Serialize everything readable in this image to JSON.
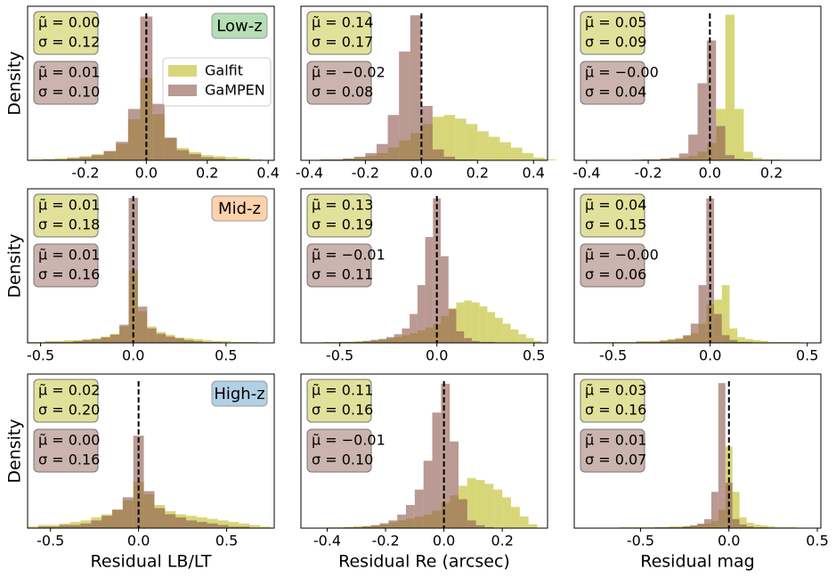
{
  "chart_data": [
    {
      "type": "histogram",
      "ylabel": "Density",
      "tag": {
        "text": "Low-z",
        "color": "#2ca02c"
      },
      "legend": "right",
      "vline": 0,
      "xlim": [
        -0.39,
        0.42
      ],
      "ylim": [
        0,
        150
      ],
      "xticks": [
        -0.2,
        {
          "value": 0,
          "label": "0.0"
        },
        0.2,
        0.4
      ],
      "bins": [
        -0.38,
        -0.34,
        -0.3,
        -0.26,
        -0.22,
        -0.18,
        -0.14,
        -0.1,
        -0.06,
        -0.02,
        0.02,
        0.06,
        0.1,
        0.14,
        0.18,
        0.22,
        0.26,
        0.3,
        0.34,
        0.38
      ],
      "series": [
        {
          "name": "Galfit",
          "color": "#bcbd22",
          "stats": [
            "μ̃ = 0.00",
            "σ = 0.12"
          ],
          "values": [
            1,
            1,
            2,
            3,
            4,
            6,
            9,
            16,
            40,
            80,
            45,
            22,
            12,
            8,
            5,
            4,
            3,
            2,
            1
          ]
        },
        {
          "name": "GaMPEN",
          "color": "#8c564b",
          "stats": [
            "μ̃ = 0.01",
            "σ = 0.10"
          ],
          "values": [
            0,
            1,
            1,
            2,
            3,
            5,
            9,
            18,
            50,
            140,
            55,
            22,
            10,
            6,
            3,
            2,
            1,
            1,
            0
          ]
        }
      ]
    },
    {
      "type": "histogram",
      "vline": 0,
      "xlim": [
        -0.43,
        0.45
      ],
      "ylim": [
        0,
        170
      ],
      "xticks": [
        -0.4,
        -0.2,
        {
          "value": 0,
          "label": "0.0"
        },
        0.2,
        0.4
      ],
      "bins": [
        -0.4,
        -0.36,
        -0.32,
        -0.28,
        -0.24,
        -0.2,
        -0.16,
        -0.12,
        -0.08,
        -0.04,
        0,
        0.04,
        0.08,
        0.12,
        0.16,
        0.2,
        0.24,
        0.28,
        0.32,
        0.36,
        0.4,
        0.44,
        0.48
      ],
      "series": [
        {
          "color": "#bcbd22",
          "stats": [
            "μ̃ = 0.14",
            "σ = 0.17"
          ],
          "values": [
            0,
            1,
            1,
            2,
            3,
            5,
            8,
            14,
            22,
            30,
            40,
            48,
            50,
            46,
            40,
            32,
            26,
            20,
            14,
            8,
            3,
            1
          ]
        },
        {
          "color": "#8c564b",
          "stats": [
            "μ̃ = −0.02",
            "σ = 0.08"
          ],
          "values": [
            0,
            1,
            1,
            2,
            4,
            8,
            18,
            50,
            120,
            160,
            60,
            12,
            4,
            1,
            1,
            0,
            0,
            0,
            0,
            0,
            0,
            0
          ]
        }
      ]
    },
    {
      "type": "histogram",
      "vline": 0,
      "xlim": [
        -0.44,
        0.36
      ],
      "ylim": [
        0,
        180
      ],
      "xticks": [
        -0.4,
        -0.2,
        {
          "value": 0,
          "label": "0.0"
        },
        0.2
      ],
      "bins": [
        -0.4,
        -0.37,
        -0.34,
        -0.31,
        -0.28,
        -0.25,
        -0.22,
        -0.19,
        -0.16,
        -0.13,
        -0.1,
        -0.07,
        -0.04,
        -0.01,
        0.02,
        0.05,
        0.08,
        0.11,
        0.14,
        0.17,
        0.2,
        0.23,
        0.26,
        0.29,
        0.32
      ],
      "series": [
        {
          "color": "#bcbd22",
          "stats": [
            "μ̃ = 0.05",
            "σ = 0.09"
          ],
          "values": [
            0,
            0,
            0,
            0,
            0,
            1,
            1,
            1,
            2,
            2,
            3,
            5,
            10,
            20,
            60,
            170,
            60,
            10,
            3,
            1,
            1,
            0,
            0,
            0
          ]
        },
        {
          "color": "#8c564b",
          "stats": [
            "μ̃ = −0.00",
            "σ = 0.04"
          ],
          "values": [
            0,
            0,
            0,
            0,
            0,
            0,
            1,
            1,
            2,
            3,
            8,
            30,
            90,
            140,
            40,
            6,
            2,
            1,
            0,
            0,
            0,
            0,
            0,
            0
          ]
        }
      ]
    },
    {
      "type": "histogram",
      "ylabel": "Density",
      "tag": {
        "text": "Mid-z",
        "color": "#ff7f0e"
      },
      "vline": 0,
      "xlim": [
        -0.57,
        0.76
      ],
      "ylim": [
        0,
        170
      ],
      "xticks": [
        -0.5,
        {
          "value": 0,
          "label": "0.0"
        },
        0.5
      ],
      "bins": [
        -0.575,
        -0.525,
        -0.475,
        -0.425,
        -0.375,
        -0.325,
        -0.275,
        -0.225,
        -0.175,
        -0.125,
        -0.075,
        -0.025,
        0.025,
        0.075,
        0.125,
        0.175,
        0.225,
        0.275,
        0.325,
        0.375,
        0.425,
        0.475,
        0.525,
        0.575,
        0.625,
        0.675
      ],
      "series": [
        {
          "color": "#bcbd22",
          "stats": [
            "μ̃ = 0.01",
            "σ = 0.18"
          ],
          "values": [
            1,
            1,
            2,
            2,
            3,
            3,
            4,
            5,
            7,
            10,
            18,
            80,
            35,
            18,
            12,
            9,
            6,
            5,
            4,
            3,
            2,
            2,
            1,
            1,
            1
          ]
        },
        {
          "color": "#8c564b",
          "stats": [
            "μ̃ = 0.01",
            "σ = 0.16"
          ],
          "values": [
            0,
            0,
            1,
            1,
            1,
            2,
            3,
            4,
            6,
            9,
            20,
            160,
            40,
            16,
            10,
            7,
            5,
            3,
            2,
            1,
            1,
            0,
            0,
            0,
            0
          ]
        }
      ]
    },
    {
      "type": "histogram",
      "vline": 0,
      "xlim": [
        -0.7,
        0.57
      ],
      "ylim": [
        0,
        160
      ],
      "xticks": [
        -0.5,
        {
          "value": 0,
          "label": "0.0"
        },
        0.5
      ],
      "bins": [
        -0.66,
        -0.62,
        -0.58,
        -0.54,
        -0.5,
        -0.46,
        -0.42,
        -0.38,
        -0.34,
        -0.3,
        -0.26,
        -0.22,
        -0.18,
        -0.14,
        -0.1,
        -0.06,
        -0.02,
        0.02,
        0.06,
        0.1,
        0.14,
        0.18,
        0.22,
        0.26,
        0.3,
        0.34,
        0.38,
        0.42,
        0.46,
        0.5,
        0.54
      ],
      "series": [
        {
          "color": "#bcbd22",
          "stats": [
            "μ̃ = 0.13",
            "σ = 0.19"
          ],
          "values": [
            0,
            0,
            1,
            1,
            1,
            1,
            2,
            2,
            3,
            4,
            5,
            6,
            8,
            10,
            13,
            16,
            20,
            28,
            36,
            42,
            44,
            42,
            38,
            32,
            26,
            20,
            14,
            9,
            5,
            2
          ]
        },
        {
          "color": "#8c564b",
          "stats": [
            "μ̃ = −0.01",
            "σ = 0.11"
          ],
          "values": [
            0,
            0,
            0,
            0,
            1,
            1,
            1,
            2,
            3,
            4,
            6,
            9,
            15,
            30,
            60,
            110,
            150,
            90,
            35,
            12,
            5,
            2,
            1,
            1,
            0,
            0,
            0,
            0,
            0,
            0
          ]
        }
      ]
    },
    {
      "type": "histogram",
      "vline": 0,
      "xlim": [
        -0.7,
        0.57
      ],
      "ylim": [
        0,
        160
      ],
      "xticks": [
        -0.5,
        {
          "value": 0,
          "label": "0.0"
        },
        0.5
      ],
      "bins": [
        -0.66,
        -0.62,
        -0.58,
        -0.54,
        -0.5,
        -0.46,
        -0.42,
        -0.38,
        -0.34,
        -0.3,
        -0.26,
        -0.22,
        -0.18,
        -0.14,
        -0.1,
        -0.06,
        -0.02,
        0.02,
        0.06,
        0.1,
        0.14,
        0.18,
        0.22,
        0.26,
        0.3,
        0.34,
        0.38,
        0.42,
        0.46,
        0.5,
        0.54
      ],
      "series": [
        {
          "color": "#bcbd22",
          "stats": [
            "μ̃ = 0.04",
            "σ = 0.15"
          ],
          "values": [
            0,
            1,
            1,
            1,
            1,
            1,
            1,
            2,
            2,
            2,
            3,
            4,
            5,
            7,
            10,
            20,
            40,
            45,
            60,
            15,
            6,
            4,
            3,
            2,
            1,
            1,
            1,
            1,
            0,
            0
          ]
        },
        {
          "color": "#8c564b",
          "stats": [
            "μ̃ = −0.00",
            "σ = 0.06"
          ],
          "values": [
            0,
            0,
            0,
            0,
            0,
            0,
            0,
            1,
            1,
            1,
            2,
            3,
            4,
            8,
            20,
            60,
            150,
            30,
            8,
            3,
            1,
            1,
            0,
            0,
            0,
            0,
            0,
            0,
            0,
            0
          ]
        }
      ]
    },
    {
      "type": "histogram",
      "ylabel": "Density",
      "xlabel": "Residual LB/LT",
      "tag": {
        "text": "High-z",
        "color": "#1f77b4"
      },
      "vline": 0,
      "xlim": [
        -0.63,
        0.77
      ],
      "ylim": [
        0,
        100
      ],
      "xticks": [
        -0.5,
        {
          "value": 0,
          "label": "0.0"
        },
        0.5
      ],
      "bins": [
        -0.63,
        -0.57,
        -0.51,
        -0.45,
        -0.39,
        -0.33,
        -0.27,
        -0.21,
        -0.15,
        -0.09,
        -0.03,
        0.03,
        0.09,
        0.15,
        0.21,
        0.27,
        0.33,
        0.39,
        0.45,
        0.51,
        0.57,
        0.63,
        0.69,
        0.75
      ],
      "series": [
        {
          "color": "#bcbd22",
          "stats": [
            "μ̃ = 0.02",
            "σ = 0.20"
          ],
          "values": [
            1,
            2,
            2,
            3,
            4,
            5,
            7,
            9,
            12,
            18,
            30,
            22,
            15,
            11,
            9,
            8,
            7,
            6,
            5,
            4,
            3,
            2,
            1
          ]
        },
        {
          "color": "#8c564b",
          "stats": [
            "μ̃ = 0.00",
            "σ = 0.16"
          ],
          "values": [
            0,
            1,
            1,
            2,
            2,
            3,
            5,
            8,
            12,
            20,
            60,
            24,
            13,
            9,
            7,
            5,
            4,
            3,
            2,
            1,
            1,
            0,
            0
          ]
        }
      ]
    },
    {
      "type": "histogram",
      "xlabel": "Residual Re (arcsec)",
      "vline": 0,
      "xlim": [
        -0.49,
        0.355
      ],
      "ylim": [
        0,
        160
      ],
      "xticks": [
        -0.4,
        -0.2,
        {
          "value": 0,
          "label": "0.0"
        },
        0.2
      ],
      "bins": [
        -0.46,
        -0.43,
        -0.4,
        -0.37,
        -0.34,
        -0.31,
        -0.28,
        -0.25,
        -0.22,
        -0.19,
        -0.16,
        -0.13,
        -0.1,
        -0.07,
        -0.04,
        -0.01,
        0.02,
        0.05,
        0.08,
        0.11,
        0.14,
        0.17,
        0.2,
        0.23,
        0.26,
        0.29,
        0.32
      ],
      "series": [
        {
          "color": "#bcbd22",
          "stats": [
            "μ̃ = 0.11",
            "σ = 0.16"
          ],
          "values": [
            0,
            0,
            1,
            1,
            1,
            2,
            2,
            3,
            4,
            6,
            8,
            10,
            12,
            14,
            18,
            26,
            34,
            44,
            52,
            50,
            46,
            40,
            32,
            22,
            12,
            4
          ]
        },
        {
          "color": "#8c564b",
          "stats": [
            "μ̃ = −0.01",
            "σ = 0.10"
          ],
          "values": [
            0,
            0,
            0,
            0,
            1,
            1,
            2,
            3,
            5,
            8,
            14,
            24,
            40,
            70,
            120,
            150,
            90,
            30,
            8,
            3,
            1,
            0,
            0,
            0,
            0,
            0
          ]
        }
      ]
    },
    {
      "type": "histogram",
      "xlabel": "Residual mag",
      "vline": 0,
      "xlim": [
        -0.875,
        0.52
      ],
      "ylim": [
        0,
        170
      ],
      "xticks": [
        -0.5,
        {
          "value": 0,
          "label": "0.0"
        },
        0.5
      ],
      "bins": [
        -0.82,
        -0.78,
        -0.74,
        -0.7,
        -0.66,
        -0.62,
        -0.58,
        -0.54,
        -0.5,
        -0.46,
        -0.42,
        -0.38,
        -0.34,
        -0.3,
        -0.26,
        -0.22,
        -0.18,
        -0.14,
        -0.1,
        -0.06,
        -0.02,
        0.02,
        0.06,
        0.1,
        0.14,
        0.18,
        0.22,
        0.26,
        0.3,
        0.34,
        0.38,
        0.42,
        0.46,
        0.5
      ],
      "series": [
        {
          "color": "#bcbd22",
          "stats": [
            "μ̃ = 0.03",
            "σ = 0.16"
          ],
          "values": [
            0,
            0,
            0,
            0,
            0,
            1,
            1,
            1,
            1,
            1,
            1,
            1,
            2,
            2,
            2,
            3,
            4,
            5,
            8,
            20,
            90,
            40,
            12,
            6,
            4,
            3,
            2,
            1,
            1,
            1,
            0,
            0,
            0
          ]
        },
        {
          "color": "#8c564b",
          "stats": [
            "μ̃ = 0.01",
            "σ = 0.07"
          ],
          "values": [
            0,
            0,
            0,
            0,
            0,
            0,
            0,
            0,
            0,
            0,
            1,
            1,
            1,
            1,
            2,
            3,
            5,
            10,
            40,
            160,
            50,
            10,
            4,
            2,
            1,
            1,
            0,
            0,
            0,
            0,
            0,
            0,
            0
          ]
        }
      ]
    }
  ]
}
